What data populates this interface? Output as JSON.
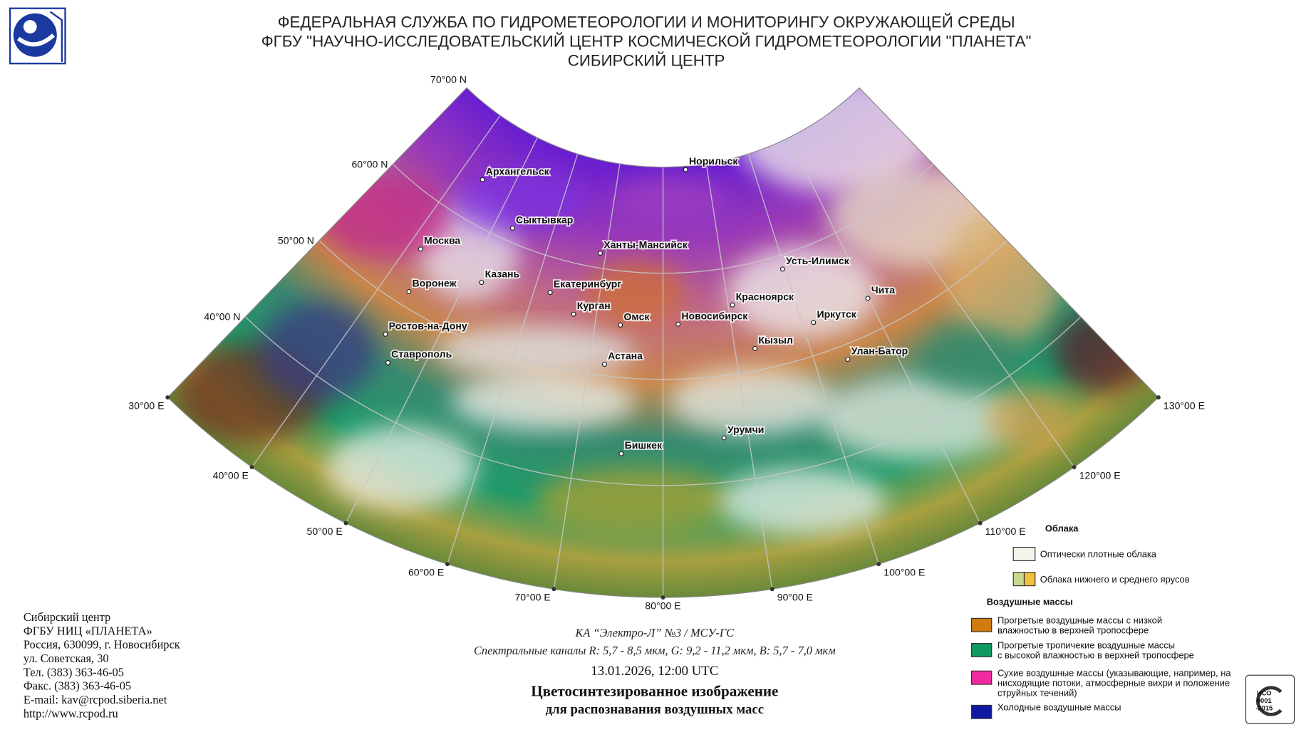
{
  "header": {
    "agency": "ФЕДЕРАЛЬНАЯ СЛУЖБА ПО ГИДРОМЕТЕОРОЛОГИИ И МОНИТОРИНГУ ОКРУЖАЮЩЕЙ СРЕДЫ",
    "institute": "ФГБУ \"НАУЧНО-ИССЛЕДОВАТЕЛЬСКИЙ ЦЕНТР КОСМИЧЕСКОЙ ГИДРОМЕТЕОРОЛОГИИ \"ПЛАНЕТА\"",
    "center": "СИБИРСКИЙ ЦЕНТР"
  },
  "map": {
    "parallel_labels": [
      "70°00 N",
      "60°00 N",
      "50°00 N",
      "40°00 N"
    ],
    "meridian_labels": [
      "30°00 E",
      "40°00 E",
      "50°00 E",
      "60°00 E",
      "70°00 E",
      "80°00 E",
      "90°00 E",
      "100°00 E",
      "110°00 E",
      "120°00 E",
      "130°00 E"
    ],
    "cities": [
      "Архангельск",
      "Норильск",
      "Сыктывкар",
      "Москва",
      "Ханты-Мансийск",
      "Казань",
      "Воронеж",
      "Екатеринбург",
      "Усть-Илимск",
      "Красноярск",
      "Чита",
      "Курган",
      "Омск",
      "Новосибирск",
      "Иркутск",
      "Ростов-на-Дону",
      "Кызыл",
      "Улан-Батор",
      "Ставрополь",
      "Астана",
      "Бишкек",
      "Урумчи"
    ]
  },
  "legend": {
    "clouds_title": "Облака",
    "clouds": [
      "Оптически плотные облака",
      "Облака нижнего и среднего ярусов"
    ],
    "air_masses_title": "Воздушные массы",
    "air_masses": [
      [
        "Прогретые воздушные массы с низкой",
        "влажностью в верхней тропосфере"
      ],
      [
        "Прогретые тропичекие воздушные массы",
        "с высокой влажностью в верхней тропосфере"
      ],
      [
        "Сухие воздушные массы (указывающие, например, на",
        "нисходящие потоки, атмосферные вихри и положение",
        "струйных течений)"
      ],
      [
        "Холодные воздушные массы"
      ]
    ]
  },
  "caption": {
    "satellite": "КА “Электро-Л” №3 / МСУ-ГС",
    "channels": "Спектральные каналы R: 5,7 - 8,5 мкм, G: 9,2 - 11,2 мкм, B: 5,7 - 7,0 мкм",
    "datetime": "13.01.2026, 12:00 UTC",
    "title_1": "Цветосинтезированное изображение",
    "title_2": "для распознавания воздушных масс"
  },
  "address": [
    "Сибирский центр",
    "ФГБУ НИЦ «ПЛАНЕТА»",
    "Россия, 630099, г. Новосибирск",
    "ул. Советская, 30",
    "Тел. (383) 363-46-05",
    "Факс. (383) 363-46-05",
    "E-mail: kav@rcpod.siberia.net",
    "http://www.rcpod.ru"
  ],
  "certificate": [
    "ИСО",
    "9001",
    "-2015"
  ]
}
